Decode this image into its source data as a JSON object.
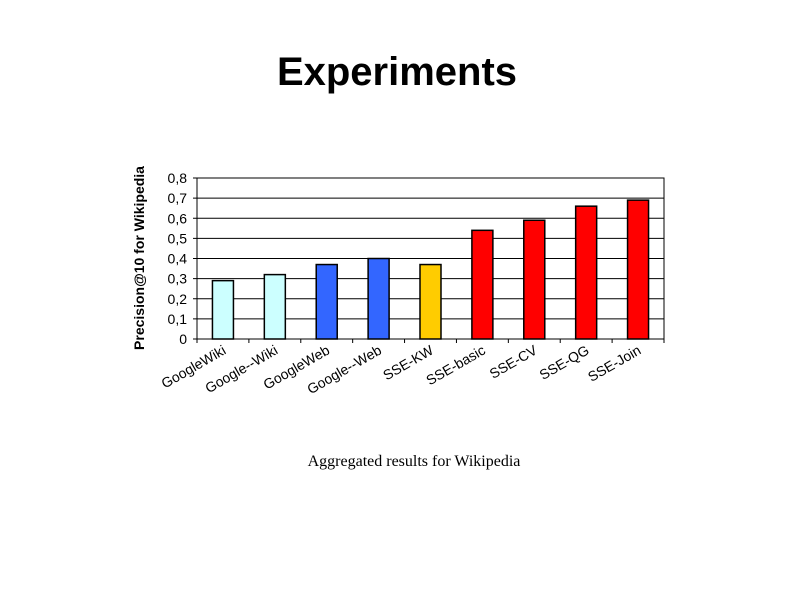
{
  "slide": {
    "title": "Experiments",
    "caption": "Aggregated results for Wikipedia"
  },
  "chart_data": {
    "type": "bar",
    "title": "",
    "xlabel": "",
    "ylabel": "Precision@10 for Wikipedia",
    "ylim": [
      0,
      0.8
    ],
    "yticks": [
      "0",
      "0,1",
      "0,2",
      "0,3",
      "0,4",
      "0,5",
      "0,6",
      "0,7",
      "0,8"
    ],
    "ytick_values": [
      0,
      0.1,
      0.2,
      0.3,
      0.4,
      0.5,
      0.6,
      0.7,
      0.8
    ],
    "grid": true,
    "categories": [
      "GoogleWiki",
      "Google--Wiki",
      "GoogleWeb",
      "Google--Web",
      "SSE-KW",
      "SSE-basic",
      "SSE-CV",
      "SSE-QG",
      "SSE-Join"
    ],
    "values": [
      0.29,
      0.32,
      0.37,
      0.4,
      0.37,
      0.54,
      0.59,
      0.66,
      0.69
    ],
    "colors": [
      "#ccffff",
      "#ccffff",
      "#3366ff",
      "#3366ff",
      "#ffcc00",
      "#ff0000",
      "#ff0000",
      "#ff0000",
      "#ff0000"
    ]
  }
}
